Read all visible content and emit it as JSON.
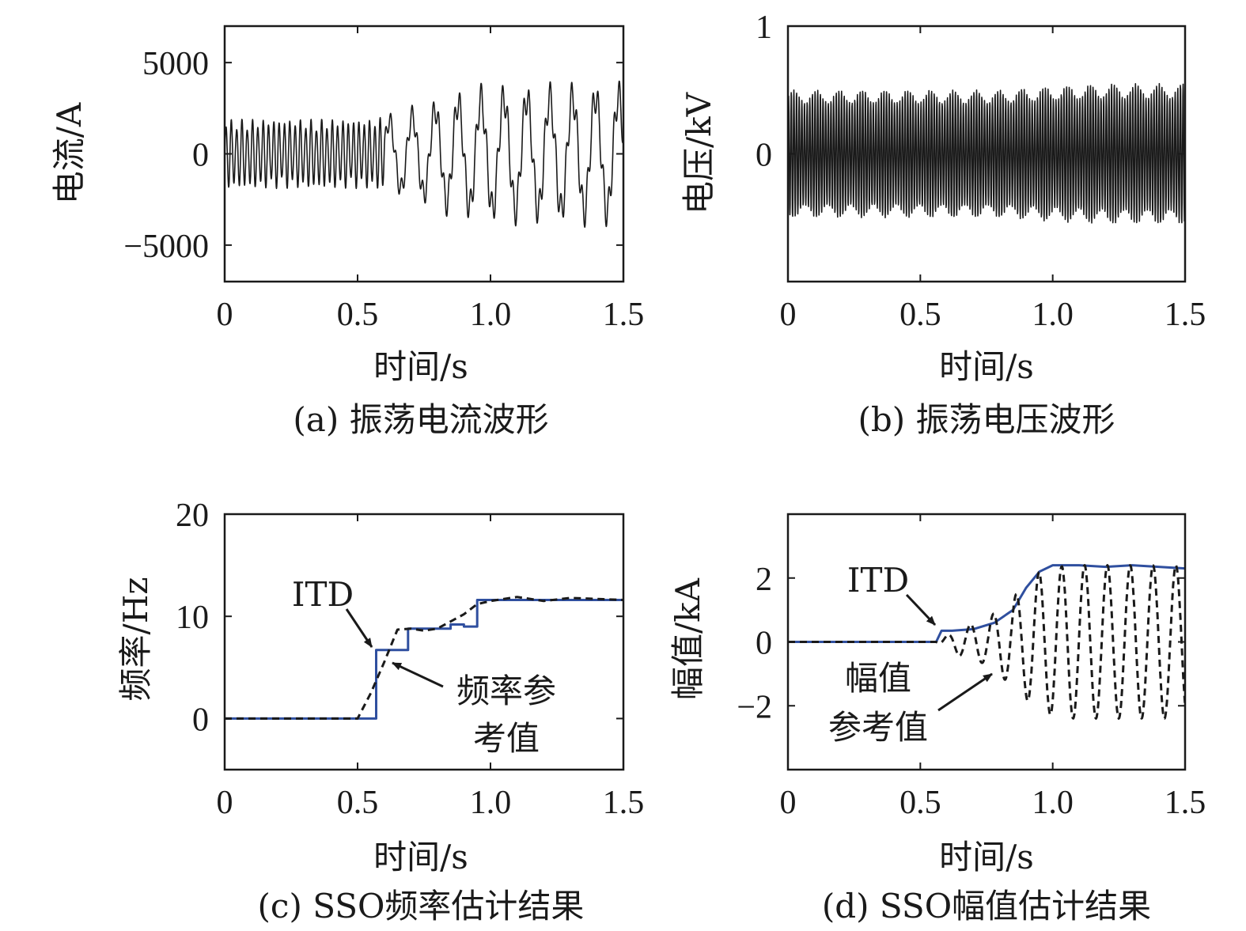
{
  "colors": {
    "axis": "#1a1a1a",
    "signal": "#1a1a1a",
    "itd": "#2f4f9f",
    "reference": "#1a1a1a"
  },
  "chart_data": [
    {
      "type": "line",
      "caption": "(a) 振荡电流波形",
      "xlabel": "时间/s",
      "ylabel": "电流/A",
      "xlim": [
        0,
        1.5
      ],
      "ylim": [
        -7000,
        7000
      ],
      "x_ticks": [
        0,
        0.5,
        1.0,
        1.5
      ],
      "x_tick_labels": [
        "0",
        "0.5",
        "1.0",
        "1.5"
      ],
      "y_ticks": [
        5000,
        0,
        -5000
      ],
      "y_tick_labels": [
        "5000",
        "0",
        "−5000"
      ],
      "grid": false,
      "series": [
        {
          "style": "solid",
          "color": "#1a1a1a",
          "envelope_x": [
            0,
            0.55,
            0.65,
            0.75,
            0.85,
            0.95,
            1.05,
            1.2,
            1.35,
            1.5
          ],
          "envelope_y": [
            1900,
            1900,
            2200,
            2600,
            3200,
            3500,
            3600,
            3600,
            3700,
            3700
          ]
        }
      ]
    },
    {
      "type": "line",
      "caption": "(b) 振荡电压波形",
      "xlabel": "时间/s",
      "ylabel": "电压/kV",
      "xlim": [
        0,
        1.5
      ],
      "ylim": [
        -1,
        1
      ],
      "x_ticks": [
        0,
        0.5,
        1.0,
        1.5
      ],
      "x_tick_labels": [
        "0",
        "0.5",
        "1.0",
        "1.5"
      ],
      "y_ticks": [
        1,
        0
      ],
      "y_tick_labels": [
        "1",
        "0"
      ],
      "grid": false,
      "series": [
        {
          "style": "solid",
          "color": "#1a1a1a",
          "envelope_x": [
            0,
            0.5,
            0.8,
            1.0,
            1.2,
            1.5
          ],
          "envelope_y": [
            0.5,
            0.5,
            0.5,
            0.53,
            0.55,
            0.55
          ]
        }
      ]
    },
    {
      "type": "line",
      "caption": "(c) SSO频率估计结果",
      "xlabel": "时间/s",
      "ylabel": "频率/Hz",
      "xlim": [
        0,
        1.5
      ],
      "ylim": [
        -5,
        20
      ],
      "x_ticks": [
        0,
        0.5,
        1.0,
        1.5
      ],
      "x_tick_labels": [
        "0",
        "0.5",
        "1.0",
        "1.5"
      ],
      "y_ticks": [
        20,
        10,
        0
      ],
      "y_tick_labels": [
        "20",
        "10",
        "0"
      ],
      "grid": false,
      "annotations": [
        {
          "text": "ITD"
        },
        {
          "lines": [
            "频率参",
            "考值"
          ]
        }
      ],
      "series": [
        {
          "name": "ITD",
          "style": "solid",
          "color": "#2f4f9f",
          "x": [
            0,
            0.57,
            0.57,
            0.69,
            0.69,
            0.85,
            0.85,
            0.9,
            0.9,
            0.95,
            0.95,
            1.5
          ],
          "y": [
            0,
            0,
            6.7,
            6.7,
            8.8,
            8.8,
            9.2,
            9.2,
            9.0,
            9.0,
            11.6,
            11.6
          ]
        },
        {
          "name": "频率参考值",
          "style": "dashed",
          "color": "#1a1a1a",
          "x": [
            0,
            0.5,
            0.55,
            0.6,
            0.65,
            0.7,
            0.75,
            0.8,
            0.85,
            0.9,
            0.95,
            1.0,
            1.1,
            1.2,
            1.3,
            1.5
          ],
          "y": [
            0,
            0,
            2.5,
            5.5,
            8.7,
            8.8,
            8.6,
            8.8,
            9.5,
            10.2,
            11.2,
            11.5,
            11.9,
            11.5,
            11.8,
            11.6
          ]
        }
      ]
    },
    {
      "type": "line",
      "caption": "(d) SSO幅值估计结果",
      "xlabel": "时间/s",
      "ylabel": "幅值/kA",
      "xlim": [
        0,
        1.5
      ],
      "ylim": [
        -4,
        4
      ],
      "x_ticks": [
        0,
        0.5,
        1.0,
        1.5
      ],
      "x_tick_labels": [
        "0",
        "0.5",
        "1.0",
        "1.5"
      ],
      "y_ticks": [
        2,
        0,
        -2
      ],
      "y_tick_labels": [
        "2",
        "0",
        "−2"
      ],
      "grid": false,
      "annotations": [
        {
          "text": "ITD"
        },
        {
          "lines": [
            "幅值",
            "参考值"
          ]
        }
      ],
      "series": [
        {
          "name": "ITD",
          "style": "solid",
          "color": "#2f4f9f",
          "x": [
            0,
            0.56,
            0.58,
            0.62,
            0.7,
            0.78,
            0.85,
            0.9,
            0.95,
            1.0,
            1.1,
            1.2,
            1.3,
            1.4,
            1.5
          ],
          "y": [
            0,
            0,
            0.35,
            0.35,
            0.4,
            0.6,
            1.0,
            1.7,
            2.2,
            2.4,
            2.4,
            2.35,
            2.4,
            2.35,
            2.3
          ]
        },
        {
          "name": "幅值参考值",
          "style": "dashed",
          "color": "#1a1a1a",
          "amplitude_x": [
            0,
            0.56,
            0.65,
            0.75,
            0.85,
            0.95,
            1.05,
            1.5
          ],
          "amplitude_y": [
            0,
            0,
            0.45,
            0.7,
            1.4,
            2.2,
            2.4,
            2.4
          ],
          "oscillation_hz": 11.6
        }
      ]
    }
  ]
}
